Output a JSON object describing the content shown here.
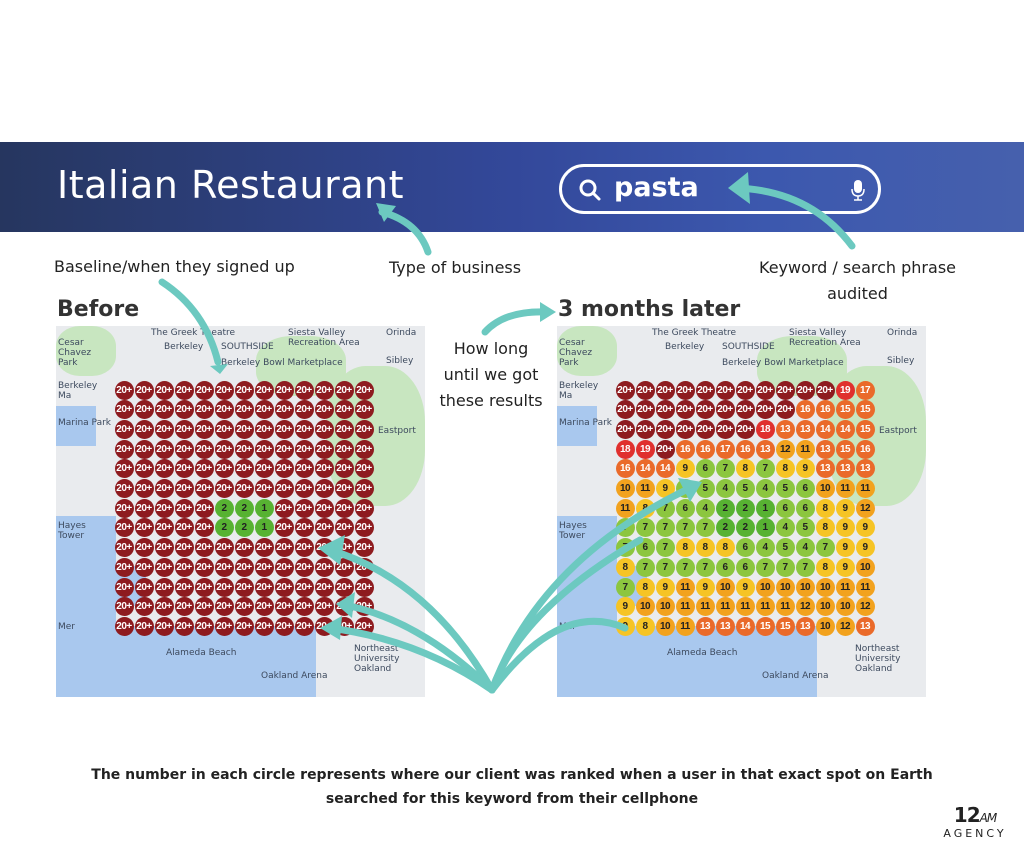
{
  "header": {
    "title": "Italian Restaurant",
    "search_query": "pasta",
    "search_icon": "search-icon",
    "mic_icon": "microphone-icon"
  },
  "annotations": {
    "baseline": "Baseline/when they signed up",
    "type_of_business": "Type of business",
    "keyword_line1": "Keyword / search phrase",
    "keyword_line2": "audited",
    "how_long_1": "How long",
    "how_long_2": "until we got",
    "how_long_3": "these results"
  },
  "before": {
    "heading": "Before"
  },
  "after": {
    "heading": "3 months later"
  },
  "map_labels": [
    "The Greek Theatre",
    "Cesar Chavez Park",
    "Berkeley",
    "SOUTHSIDE",
    "Berkeley Bowl Marketplace",
    "Siesta Valley Recreation Area",
    "Orinda",
    "Sibley",
    "Eastport",
    "Marina Park",
    "Berkeley Ma",
    "Hayes Tower",
    "Northeast University Oakland",
    "Alameda Beach",
    "Oakland Arena",
    "Mer"
  ],
  "colors": {
    "accent": "#6cc9c0",
    "rank_20_plus": "#8e1b1f",
    "rank_18_19": "#e0302e",
    "rank_13_17": "#ea6a2a",
    "rank_10_12": "#f2a21e",
    "rank_8_9": "#f6c425",
    "rank_4_7": "#8cc63f",
    "rank_1_3": "#57b232"
  },
  "chart_data": [
    {
      "type": "heatmap",
      "title": "Before",
      "rows": [
        [
          "20+",
          "20+",
          "20+",
          "20+",
          "20+",
          "20+",
          "20+",
          "20+",
          "20+",
          "20+",
          "20+",
          "20+",
          "20+"
        ],
        [
          "20+",
          "20+",
          "20+",
          "20+",
          "20+",
          "20+",
          "20+",
          "20+",
          "20+",
          "20+",
          "20+",
          "20+",
          "20+"
        ],
        [
          "20+",
          "20+",
          "20+",
          "20+",
          "20+",
          "20+",
          "20+",
          "20+",
          "20+",
          "20+",
          "20+",
          "20+",
          "20+"
        ],
        [
          "20+",
          "20+",
          "20+",
          "20+",
          "20+",
          "20+",
          "20+",
          "20+",
          "20+",
          "20+",
          "20+",
          "20+",
          "20+"
        ],
        [
          "20+",
          "20+",
          "20+",
          "20+",
          "20+",
          "20+",
          "20+",
          "20+",
          "20+",
          "20+",
          "20+",
          "20+",
          "20+"
        ],
        [
          "20+",
          "20+",
          "20+",
          "20+",
          "20+",
          "20+",
          "20+",
          "20+",
          "20+",
          "20+",
          "20+",
          "20+",
          "20+"
        ],
        [
          "20+",
          "20+",
          "20+",
          "20+",
          "20+",
          "2",
          "2",
          "1",
          "20+",
          "20+",
          "20+",
          "20+",
          "20+"
        ],
        [
          "20+",
          "20+",
          "20+",
          "20+",
          "20+",
          "2",
          "2",
          "1",
          "20+",
          "20+",
          "20+",
          "20+",
          "20+"
        ],
        [
          "20+",
          "20+",
          "20+",
          "20+",
          "20+",
          "20+",
          "20+",
          "20+",
          "20+",
          "20+",
          "20+",
          "20+",
          "20+"
        ],
        [
          "20+",
          "20+",
          "20+",
          "20+",
          "20+",
          "20+",
          "20+",
          "20+",
          "20+",
          "20+",
          "20+",
          "20+",
          "20+"
        ],
        [
          "20+",
          "20+",
          "20+",
          "20+",
          "20+",
          "20+",
          "20+",
          "20+",
          "20+",
          "20+",
          "20+",
          "20+",
          "20+"
        ],
        [
          "20+",
          "20+",
          "20+",
          "20+",
          "20+",
          "20+",
          "20+",
          "20+",
          "20+",
          "20+",
          "20+",
          "20+",
          "20+"
        ],
        [
          "20+",
          "20+",
          "20+",
          "20+",
          "20+",
          "20+",
          "20+",
          "20+",
          "20+",
          "20+",
          "20+",
          "20+",
          "20+"
        ]
      ]
    },
    {
      "type": "heatmap",
      "title": "3 months later",
      "rows": [
        [
          "20+",
          "20+",
          "20+",
          "20+",
          "20+",
          "20+",
          "20+",
          "20+",
          "20+",
          "20+",
          "20+",
          "19",
          "17"
        ],
        [
          "20+",
          "20+",
          "20+",
          "20+",
          "20+",
          "20+",
          "20+",
          "20+",
          "20+",
          "16",
          "16",
          "15",
          "15"
        ],
        [
          "20+",
          "20+",
          "20+",
          "20+",
          "20+",
          "20+",
          "20+",
          "18",
          "13",
          "13",
          "14",
          "14",
          "15"
        ],
        [
          "18",
          "19",
          "20+",
          "16",
          "16",
          "17",
          "16",
          "13",
          "12",
          "11",
          "13",
          "15",
          "16"
        ],
        [
          "16",
          "14",
          "14",
          "9",
          "6",
          "7",
          "8",
          "7",
          "8",
          "9",
          "13",
          "13",
          "13"
        ],
        [
          "10",
          "11",
          "9",
          "7",
          "5",
          "4",
          "5",
          "4",
          "5",
          "6",
          "10",
          "11",
          "11"
        ],
        [
          "11",
          "8",
          "7",
          "6",
          "4",
          "2",
          "2",
          "1",
          "6",
          "6",
          "8",
          "9",
          "12"
        ],
        [
          "7",
          "7",
          "7",
          "7",
          "7",
          "2",
          "2",
          "1",
          "4",
          "5",
          "8",
          "9",
          "9"
        ],
        [
          "7",
          "6",
          "7",
          "8",
          "8",
          "8",
          "6",
          "4",
          "5",
          "4",
          "7",
          "9",
          "9"
        ],
        [
          "8",
          "7",
          "7",
          "7",
          "7",
          "6",
          "6",
          "7",
          "7",
          "7",
          "8",
          "9",
          "10"
        ],
        [
          "7",
          "8",
          "9",
          "11",
          "9",
          "10",
          "9",
          "10",
          "10",
          "10",
          "10",
          "11",
          "11"
        ],
        [
          "9",
          "10",
          "10",
          "11",
          "11",
          "11",
          "11",
          "11",
          "11",
          "12",
          "10",
          "10",
          "12"
        ],
        [
          "9",
          "8",
          "10",
          "11",
          "13",
          "13",
          "14",
          "15",
          "15",
          "13",
          "10",
          "12",
          "13"
        ]
      ]
    }
  ],
  "footer": {
    "line1": "The number in each circle represents where our client was ranked when a user in that exact spot on Earth",
    "line2": "searched for this keyword from their cellphone"
  },
  "logo": {
    "number": "12AM",
    "word": "AGENCY"
  }
}
